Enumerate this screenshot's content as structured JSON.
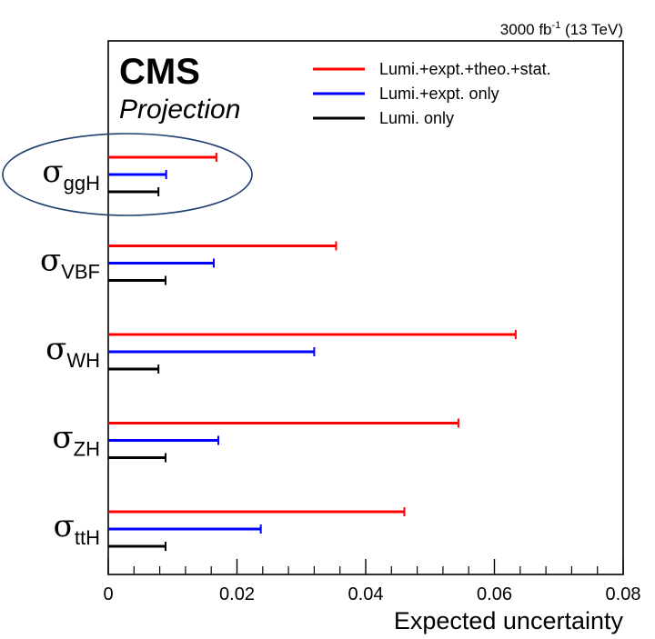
{
  "chart_data": {
    "type": "bar",
    "orientation": "horizontal",
    "header": {
      "lumi_value": "3000 fb",
      "lumi_exponent": "-1",
      "energy": "(13 TeV)"
    },
    "experiment": "CMS",
    "tag": "Projection",
    "xlabel": "Expected uncertainty",
    "xlim": [
      0,
      0.08
    ],
    "xticks": [
      "0",
      "0.02",
      "0.04",
      "0.06",
      "0.08"
    ],
    "xtick_values": [
      0,
      0.02,
      0.04,
      0.06,
      0.08
    ],
    "legend_position": "top-right",
    "categories": [
      {
        "symbol": "σ",
        "sub": "ggH",
        "highlighted": true
      },
      {
        "symbol": "σ",
        "sub": "VBF"
      },
      {
        "symbol": "σ",
        "sub": "WH"
      },
      {
        "symbol": "σ",
        "sub": "ZH"
      },
      {
        "symbol": "σ",
        "sub": "ttH"
      }
    ],
    "series": [
      {
        "name": "Lumi.+expt.+theo.+stat.",
        "color": "#ff0000",
        "values": [
          0.0168,
          0.0354,
          0.0633,
          0.0544,
          0.046
        ]
      },
      {
        "name": "Lumi.+expt. only",
        "color": "#0000ff",
        "values": [
          0.009,
          0.0164,
          0.032,
          0.0171,
          0.0237
        ]
      },
      {
        "name": "Lumi. only",
        "color": "#000000",
        "values": [
          0.0078,
          0.0089,
          0.0078,
          0.0089,
          0.0089
        ]
      }
    ],
    "highlight_color": "#1f3f6e"
  }
}
